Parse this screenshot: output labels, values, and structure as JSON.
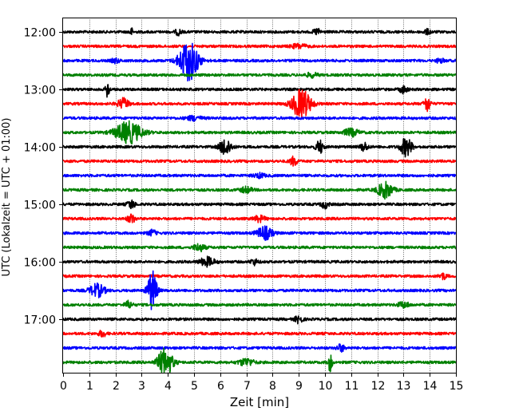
{
  "chart_data": {
    "type": "line",
    "title": "",
    "xlabel": "Zeit  [min]",
    "ylabel": "UTC (Lokalzeit = UTC + 01:00)",
    "xlim": [
      0,
      15
    ],
    "x_ticks": [
      "0",
      "1",
      "2",
      "3",
      "4",
      "5",
      "6",
      "7",
      "8",
      "9",
      "10",
      "11",
      "12",
      "13",
      "14",
      "15"
    ],
    "y_ticks": [
      {
        "label": "12:00",
        "trace": 0
      },
      {
        "label": "13:00",
        "trace": 4
      },
      {
        "label": "14:00",
        "trace": 8
      },
      {
        "label": "15:00",
        "trace": 12
      },
      {
        "label": "16:00",
        "trace": 16
      },
      {
        "label": "17:00",
        "trace": 20
      }
    ],
    "grid": "vertical dotted",
    "color_cycle": [
      "#000000",
      "#ff0000",
      "#0000ff",
      "#008000"
    ],
    "traces": [
      {
        "start": "12:00",
        "events": [
          {
            "x": 2.6,
            "a": 0.25,
            "w": 0.05
          },
          {
            "x": 4.4,
            "a": 0.2,
            "w": 0.08
          },
          {
            "x": 9.7,
            "a": 0.2,
            "w": 0.1
          },
          {
            "x": 13.9,
            "a": 0.15,
            "w": 0.1
          }
        ]
      },
      {
        "start": "12:15",
        "events": [
          {
            "x": 9.0,
            "a": 0.15,
            "w": 0.2
          }
        ]
      },
      {
        "start": "12:30",
        "events": [
          {
            "x": 4.8,
            "a": 1.4,
            "w": 0.25
          },
          {
            "x": 2.0,
            "a": 0.15,
            "w": 0.1
          },
          {
            "x": 14.4,
            "a": 0.15,
            "w": 0.1
          }
        ]
      },
      {
        "start": "12:45",
        "events": [
          {
            "x": 9.5,
            "a": 0.15,
            "w": 0.15
          }
        ]
      },
      {
        "start": "13:00",
        "events": [
          {
            "x": 1.7,
            "a": 0.6,
            "w": 0.05
          },
          {
            "x": 13.0,
            "a": 0.25,
            "w": 0.1
          }
        ]
      },
      {
        "start": "13:15",
        "events": [
          {
            "x": 9.1,
            "a": 1.0,
            "w": 0.25
          },
          {
            "x": 2.3,
            "a": 0.35,
            "w": 0.15
          },
          {
            "x": 13.9,
            "a": 0.55,
            "w": 0.08
          }
        ]
      },
      {
        "start": "13:30",
        "events": [
          {
            "x": 5.0,
            "a": 0.15,
            "w": 0.2
          }
        ]
      },
      {
        "start": "13:45",
        "events": [
          {
            "x": 2.5,
            "a": 0.75,
            "w": 0.35
          },
          {
            "x": 11.0,
            "a": 0.25,
            "w": 0.2
          }
        ]
      },
      {
        "start": "14:00",
        "events": [
          {
            "x": 6.2,
            "a": 0.6,
            "w": 0.15
          },
          {
            "x": 9.8,
            "a": 0.45,
            "w": 0.1
          },
          {
            "x": 13.1,
            "a": 0.65,
            "w": 0.15
          },
          {
            "x": 11.5,
            "a": 0.3,
            "w": 0.1
          }
        ]
      },
      {
        "start": "14:15",
        "events": [
          {
            "x": 8.8,
            "a": 0.3,
            "w": 0.1
          }
        ]
      },
      {
        "start": "14:30",
        "events": [
          {
            "x": 7.5,
            "a": 0.15,
            "w": 0.15
          }
        ]
      },
      {
        "start": "14:45",
        "events": [
          {
            "x": 12.3,
            "a": 0.55,
            "w": 0.2
          },
          {
            "x": 7.0,
            "a": 0.2,
            "w": 0.15
          }
        ]
      },
      {
        "start": "15:00",
        "events": [
          {
            "x": 2.6,
            "a": 0.3,
            "w": 0.1
          },
          {
            "x": 10.0,
            "a": 0.25,
            "w": 0.1
          }
        ]
      },
      {
        "start": "15:15",
        "events": [
          {
            "x": 2.6,
            "a": 0.3,
            "w": 0.1
          },
          {
            "x": 7.5,
            "a": 0.2,
            "w": 0.15
          }
        ]
      },
      {
        "start": "15:30",
        "events": [
          {
            "x": 7.7,
            "a": 0.45,
            "w": 0.2
          },
          {
            "x": 3.4,
            "a": 0.2,
            "w": 0.1
          }
        ]
      },
      {
        "start": "15:45",
        "events": [
          {
            "x": 5.2,
            "a": 0.25,
            "w": 0.15
          }
        ]
      },
      {
        "start": "16:00",
        "events": [
          {
            "x": 5.5,
            "a": 0.3,
            "w": 0.2
          },
          {
            "x": 7.3,
            "a": 0.2,
            "w": 0.1
          }
        ]
      },
      {
        "start": "16:15",
        "events": [
          {
            "x": 14.5,
            "a": 0.2,
            "w": 0.1
          }
        ]
      },
      {
        "start": "16:30",
        "events": [
          {
            "x": 3.4,
            "a": 1.4,
            "w": 0.12
          },
          {
            "x": 1.3,
            "a": 0.45,
            "w": 0.2
          }
        ]
      },
      {
        "start": "16:45",
        "events": [
          {
            "x": 2.5,
            "a": 0.25,
            "w": 0.1
          },
          {
            "x": 13.0,
            "a": 0.2,
            "w": 0.15
          }
        ]
      },
      {
        "start": "17:00",
        "events": [
          {
            "x": 9.0,
            "a": 0.25,
            "w": 0.1
          }
        ]
      },
      {
        "start": "17:15",
        "events": [
          {
            "x": 1.5,
            "a": 0.2,
            "w": 0.1
          }
        ]
      },
      {
        "start": "17:30",
        "events": [
          {
            "x": 10.6,
            "a": 0.25,
            "w": 0.1
          }
        ]
      },
      {
        "start": "17:45",
        "events": [
          {
            "x": 3.9,
            "a": 0.95,
            "w": 0.2
          },
          {
            "x": 10.2,
            "a": 0.7,
            "w": 0.05
          },
          {
            "x": 7.0,
            "a": 0.25,
            "w": 0.2
          }
        ]
      }
    ]
  }
}
